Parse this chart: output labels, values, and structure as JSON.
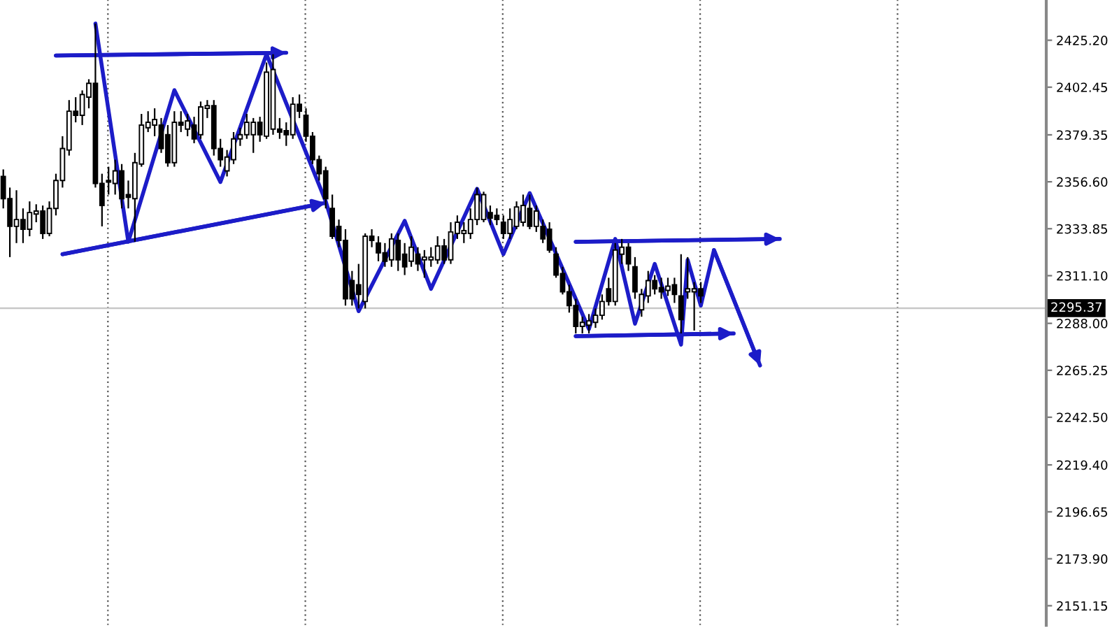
{
  "chart_data": {
    "type": "candlestick",
    "categories": [
      null,
      null,
      null,
      null,
      null,
      null,
      null,
      null,
      null,
      null,
      null,
      null,
      null,
      null,
      null,
      null,
      null,
      null,
      null,
      null,
      null,
      null,
      null,
      null,
      null,
      null,
      null,
      null,
      null,
      null,
      null,
      null,
      null,
      null,
      null,
      null,
      null,
      null,
      null,
      null,
      null,
      null,
      null,
      null,
      null,
      null,
      null,
      null,
      null,
      null,
      null,
      null,
      null,
      null,
      null,
      null,
      null,
      null,
      null,
      null,
      null,
      null,
      null,
      null,
      null,
      null,
      null,
      null,
      null,
      null,
      null,
      null,
      null,
      null,
      null,
      null,
      null,
      null,
      null,
      null,
      null,
      null,
      null,
      null,
      null,
      null,
      null,
      null,
      null,
      null,
      null,
      null,
      null,
      null,
      null,
      null,
      null,
      null,
      null,
      null,
      null,
      null,
      null,
      null,
      null,
      null,
      null,
      null,
      null,
      null,
      null,
      null,
      null,
      null,
      null,
      null,
      null,
      null,
      null,
      null,
      null,
      null,
      null,
      null,
      null,
      null,
      null,
      null,
      null,
      null,
      null,
      null,
      null,
      null,
      null,
      null,
      null,
      null,
      null,
      null,
      null,
      null,
      null,
      null,
      null,
      null,
      null,
      null,
      null,
      null,
      null,
      null,
      null,
      null,
      null,
      null,
      null,
      null,
      null
    ],
    "ohlc": [
      [
        2359.2,
        2362.6,
        2343.7,
        2348.4
      ],
      [
        2348.4,
        2353.8,
        2320.1,
        2335.0
      ],
      [
        2335.0,
        2352.5,
        2326.9,
        2338.3
      ],
      [
        2338.3,
        2343.7,
        2326.9,
        2333.6
      ],
      [
        2333.6,
        2347.1,
        2330.2,
        2341.7
      ],
      [
        2341.0,
        2345.7,
        2337.0,
        2342.4
      ],
      [
        2342.4,
        2345.1,
        2328.9,
        2331.6
      ],
      [
        2331.6,
        2347.1,
        2330.2,
        2343.7
      ],
      [
        2343.7,
        2360.5,
        2340.3,
        2357.2
      ],
      [
        2357.2,
        2378.7,
        2353.8,
        2372.7
      ],
      [
        2372.0,
        2396.2,
        2369.3,
        2390.8
      ],
      [
        2390.8,
        2397.6,
        2385.4,
        2388.8
      ],
      [
        2388.8,
        2400.9,
        2384.1,
        2398.9
      ],
      [
        2397.6,
        2406.3,
        2392.2,
        2404.3
      ],
      [
        2404.3,
        2433.3,
        2353.8,
        2355.8
      ],
      [
        2355.8,
        2360.5,
        2335.0,
        2345.1
      ],
      [
        2357.2,
        2363.9,
        2350.4,
        2356.5
      ],
      [
        2355.8,
        2367.3,
        2350.4,
        2361.9
      ],
      [
        2361.9,
        2365.2,
        2343.7,
        2348.4
      ],
      [
        2350.4,
        2357.2,
        2343.7,
        2349.1
      ],
      [
        2348.4,
        2370.6,
        2327.5,
        2365.9
      ],
      [
        2365.2,
        2389.5,
        2363.9,
        2384.1
      ],
      [
        2382.8,
        2390.8,
        2380.7,
        2385.4
      ],
      [
        2384.1,
        2392.2,
        2378.7,
        2386.8
      ],
      [
        2384.1,
        2387.5,
        2370.6,
        2372.7
      ],
      [
        2379.4,
        2384.1,
        2363.9,
        2365.9
      ],
      [
        2365.9,
        2390.8,
        2363.9,
        2385.4
      ],
      [
        2385.4,
        2390.8,
        2380.7,
        2384.1
      ],
      [
        2382.1,
        2389.5,
        2378.7,
        2386.1
      ],
      [
        2384.1,
        2388.1,
        2375.3,
        2377.4
      ],
      [
        2379.4,
        2395.5,
        2377.4,
        2392.9
      ],
      [
        2392.2,
        2396.2,
        2387.5,
        2393.5
      ],
      [
        2393.5,
        2396.2,
        2369.3,
        2372.7
      ],
      [
        2372.7,
        2377.4,
        2363.9,
        2367.3
      ],
      [
        2361.9,
        2372.0,
        2359.2,
        2368.6
      ],
      [
        2367.3,
        2380.7,
        2365.2,
        2377.4
      ],
      [
        2377.4,
        2382.8,
        2374.0,
        2379.4
      ],
      [
        2379.4,
        2389.5,
        2377.4,
        2385.4
      ],
      [
        2379.4,
        2387.5,
        2370.6,
        2385.4
      ],
      [
        2385.4,
        2388.1,
        2376.0,
        2379.4
      ],
      [
        2378.7,
        2414.4,
        2377.4,
        2409.7
      ],
      [
        2382.1,
        2418.4,
        2379.4,
        2411.0
      ],
      [
        2382.1,
        2387.5,
        2377.4,
        2380.7
      ],
      [
        2381.4,
        2385.4,
        2374.0,
        2379.4
      ],
      [
        2379.4,
        2397.6,
        2377.4,
        2394.2
      ],
      [
        2394.2,
        2398.9,
        2387.5,
        2390.8
      ],
      [
        2388.8,
        2392.2,
        2376.0,
        2378.7
      ],
      [
        2378.7,
        2380.7,
        2365.2,
        2367.3
      ],
      [
        2367.3,
        2369.3,
        2357.2,
        2360.5
      ],
      [
        2361.9,
        2363.9,
        2343.7,
        2348.4
      ],
      [
        2343.7,
        2350.4,
        2328.9,
        2330.2
      ],
      [
        2335.0,
        2338.3,
        2324.9,
        2328.2
      ],
      [
        2328.2,
        2333.6,
        2296.6,
        2299.9
      ],
      [
        2308.7,
        2313.4,
        2296.6,
        2299.9
      ],
      [
        2306.7,
        2316.8,
        2295.2,
        2302.0
      ],
      [
        2298.6,
        2331.6,
        2295.2,
        2330.2
      ],
      [
        2330.2,
        2333.6,
        2324.9,
        2328.2
      ],
      [
        2326.9,
        2330.2,
        2318.1,
        2322.2
      ],
      [
        2322.2,
        2326.9,
        2315.4,
        2318.1
      ],
      [
        2318.8,
        2331.6,
        2315.4,
        2328.9
      ],
      [
        2328.2,
        2331.6,
        2313.4,
        2318.8
      ],
      [
        2321.5,
        2326.9,
        2311.4,
        2315.4
      ],
      [
        2318.1,
        2330.2,
        2315.4,
        2324.9
      ],
      [
        2321.5,
        2324.9,
        2313.4,
        2316.8
      ],
      [
        2318.8,
        2323.5,
        2310.1,
        2320.1
      ],
      [
        2318.8,
        2324.9,
        2315.4,
        2320.1
      ],
      [
        2318.8,
        2330.2,
        2316.8,
        2325.5
      ],
      [
        2325.5,
        2328.9,
        2316.8,
        2318.8
      ],
      [
        2318.8,
        2337.0,
        2316.8,
        2332.3
      ],
      [
        2331.6,
        2340.3,
        2328.9,
        2337.0
      ],
      [
        2331.6,
        2337.0,
        2326.9,
        2332.9
      ],
      [
        2331.6,
        2343.7,
        2328.9,
        2338.3
      ],
      [
        2338.3,
        2353.8,
        2335.6,
        2350.4
      ],
      [
        2338.3,
        2351.8,
        2337.0,
        2350.4
      ],
      [
        2341.7,
        2345.1,
        2335.6,
        2339.0
      ],
      [
        2340.3,
        2343.7,
        2335.6,
        2338.3
      ],
      [
        2337.0,
        2340.3,
        2328.9,
        2331.6
      ],
      [
        2331.6,
        2343.7,
        2328.9,
        2338.3
      ],
      [
        2335.0,
        2347.1,
        2333.6,
        2344.4
      ],
      [
        2337.0,
        2350.4,
        2335.0,
        2345.1
      ],
      [
        2343.7,
        2350.4,
        2333.6,
        2335.0
      ],
      [
        2335.0,
        2345.1,
        2332.3,
        2342.4
      ],
      [
        2335.0,
        2338.3,
        2326.9,
        2328.9
      ],
      [
        2333.6,
        2337.0,
        2322.2,
        2323.5
      ],
      [
        2321.5,
        2324.9,
        2310.1,
        2311.4
      ],
      [
        2312.1,
        2315.4,
        2302.0,
        2303.3
      ],
      [
        2303.3,
        2306.7,
        2293.2,
        2296.6
      ],
      [
        2296.6,
        2299.9,
        2283.1,
        2286.5
      ],
      [
        2286.5,
        2291.2,
        2283.1,
        2288.5
      ],
      [
        2287.1,
        2292.5,
        2283.1,
        2289.2
      ],
      [
        2288.5,
        2295.2,
        2285.8,
        2291.9
      ],
      [
        2291.9,
        2302.0,
        2289.8,
        2298.6
      ],
      [
        2304.7,
        2310.1,
        2296.6,
        2298.6
      ],
      [
        2298.6,
        2326.9,
        2296.6,
        2323.5
      ],
      [
        2321.5,
        2328.9,
        2316.8,
        2324.9
      ],
      [
        2324.9,
        2326.9,
        2313.4,
        2316.8
      ],
      [
        2315.4,
        2320.1,
        2299.9,
        2303.3
      ],
      [
        2294.6,
        2304.7,
        2291.2,
        2302.0
      ],
      [
        2301.3,
        2313.4,
        2297.9,
        2308.7
      ],
      [
        2308.7,
        2311.4,
        2302.0,
        2304.7
      ],
      [
        2305.3,
        2310.1,
        2299.9,
        2303.3
      ],
      [
        2304.0,
        2310.1,
        2301.3,
        2306.0
      ],
      [
        2306.7,
        2310.1,
        2297.9,
        2302.0
      ],
      [
        2301.3,
        2321.5,
        2283.1,
        2289.8
      ],
      [
        2303.3,
        2320.1,
        2299.9,
        2304.7
      ],
      [
        2303.3,
        2308.0,
        2284.5,
        2304.7
      ],
      [
        2304.7,
        2308.0,
        2297.9,
        2301.3
      ],
      null,
      null,
      null,
      null,
      null,
      null,
      null,
      null,
      null,
      null,
      null,
      null,
      null,
      null,
      null,
      null,
      null,
      null,
      null,
      null,
      null,
      null,
      null,
      null,
      null,
      null,
      null,
      null,
      null,
      null,
      null,
      null,
      null,
      null,
      null,
      null,
      null,
      null,
      null,
      null,
      null,
      null,
      null,
      null,
      null,
      null,
      null,
      null,
      null,
      null,
      null,
      null
    ],
    "series": [
      {
        "type": "line",
        "color": "#1c1cc8",
        "values": [
          null,
          null,
          null,
          null,
          null,
          null,
          null,
          null,
          null,
          null,
          null,
          null,
          null,
          null,
          2433.3,
          null,
          null,
          null,
          null,
          2327.5,
          null,
          null,
          null,
          null,
          null,
          null,
          2401.0,
          null,
          null,
          null,
          null,
          null,
          null,
          2356.5,
          null,
          null,
          null,
          null,
          null,
          null,
          2418.4,
          null,
          null,
          null,
          null,
          null,
          null,
          null,
          null,
          2347.1,
          null,
          null,
          null,
          null,
          2293.9,
          null,
          null,
          null,
          null,
          null,
          null,
          2337.7,
          null,
          null,
          null,
          2304.7,
          null,
          null,
          null,
          null,
          null,
          null,
          2353.2,
          null,
          null,
          null,
          2321.5,
          null,
          null,
          null,
          2351.1,
          null,
          null,
          null,
          null,
          null,
          null,
          null,
          null,
          2285.2,
          null,
          null,
          null,
          2328.9,
          null,
          null,
          2287.8,
          null,
          null,
          2316.8,
          null,
          null,
          null,
          2277.7,
          2318.8,
          null,
          2296.6,
          null,
          2323.5,
          null,
          null,
          null,
          null,
          null,
          null,
          2267.6,
          null,
          null,
          null,
          null,
          null,
          null,
          null,
          null,
          null,
          null,
          null,
          null,
          null,
          null,
          null,
          null,
          null,
          null,
          null,
          null,
          null,
          null,
          null,
          null,
          null,
          null,
          null,
          null,
          null,
          null,
          null,
          null,
          null,
          null,
          null,
          null,
          null,
          null,
          null,
          null,
          null,
          null,
          null
        ]
      },
      {
        "type": "line",
        "color": "#1c1cc8",
        "values": [
          null,
          null,
          null,
          null,
          null,
          null,
          null,
          null,
          2417.8,
          null,
          null,
          null,
          null,
          null,
          null,
          null,
          null,
          null,
          null,
          null,
          null,
          null,
          null,
          null,
          null,
          null,
          null,
          null,
          null,
          null,
          null,
          null,
          null,
          null,
          null,
          null,
          null,
          null,
          null,
          null,
          null,
          null,
          null,
          2419.1,
          null,
          null,
          null,
          null,
          null,
          null,
          null,
          null,
          null,
          null,
          null,
          null,
          null,
          null,
          null,
          null,
          null,
          null,
          null,
          null,
          null,
          null,
          null,
          null,
          null,
          null,
          null,
          null,
          null,
          null,
          null,
          null,
          null,
          null,
          null,
          null,
          null,
          null,
          null,
          null,
          null,
          null,
          null,
          null,
          null,
          null,
          null,
          null,
          null,
          null,
          null,
          null,
          null,
          null,
          null,
          null,
          null,
          null,
          null,
          null,
          null,
          null,
          null,
          null,
          null,
          null,
          null,
          null,
          null,
          null,
          null,
          null,
          null,
          null,
          null,
          null,
          null,
          null,
          null,
          null,
          null,
          null,
          null,
          null,
          null,
          null,
          null,
          null,
          null,
          null,
          null,
          null,
          null,
          null,
          null,
          null,
          null,
          null,
          null,
          null,
          null,
          null,
          null,
          null,
          null,
          null,
          null,
          null,
          null,
          null,
          null,
          null,
          null,
          null,
          null
        ]
      },
      {
        "type": "line",
        "color": "#1c1cc8",
        "values": [
          null,
          null,
          null,
          null,
          null,
          null,
          null,
          null,
          null,
          2321.5,
          null,
          null,
          null,
          null,
          null,
          null,
          null,
          null,
          null,
          null,
          null,
          null,
          null,
          null,
          null,
          null,
          null,
          null,
          null,
          null,
          null,
          null,
          null,
          null,
          null,
          null,
          null,
          null,
          null,
          null,
          null,
          null,
          null,
          null,
          null,
          null,
          null,
          null,
          null,
          2346.4,
          null,
          null,
          null,
          null,
          null,
          null,
          null,
          null,
          null,
          null,
          null,
          null,
          null,
          null,
          null,
          null,
          null,
          null,
          null,
          null,
          null,
          null,
          null,
          null,
          null,
          null,
          null,
          null,
          null,
          null,
          null,
          null,
          null,
          null,
          null,
          null,
          null,
          null,
          null,
          null,
          null,
          null,
          null,
          null,
          null,
          null,
          null,
          null,
          null,
          null,
          null,
          null,
          null,
          null,
          null,
          null,
          null,
          null,
          null,
          null,
          null,
          null,
          null,
          null,
          null,
          null,
          null,
          null,
          null,
          null,
          null,
          null,
          null,
          null,
          null,
          null,
          null,
          null,
          null,
          null,
          null,
          null,
          null,
          null,
          null,
          null,
          null,
          null,
          null,
          null,
          null,
          null,
          null,
          null,
          null,
          null,
          null,
          null,
          null,
          null,
          null,
          null,
          null,
          null,
          null,
          null,
          null,
          null,
          null
        ]
      },
      {
        "type": "line",
        "color": "#1c1cc8",
        "values": [
          null,
          null,
          null,
          null,
          null,
          null,
          null,
          null,
          null,
          null,
          null,
          null,
          null,
          null,
          null,
          null,
          null,
          null,
          null,
          null,
          null,
          null,
          null,
          null,
          null,
          null,
          null,
          null,
          null,
          null,
          null,
          null,
          null,
          null,
          null,
          null,
          null,
          null,
          null,
          null,
          null,
          null,
          null,
          null,
          null,
          null,
          null,
          null,
          null,
          null,
          null,
          null,
          null,
          null,
          null,
          null,
          null,
          null,
          null,
          null,
          null,
          null,
          null,
          null,
          null,
          null,
          null,
          null,
          null,
          null,
          null,
          null,
          null,
          null,
          null,
          null,
          null,
          null,
          null,
          null,
          null,
          null,
          null,
          null,
          null,
          null,
          null,
          2327.5,
          null,
          null,
          null,
          null,
          null,
          null,
          null,
          null,
          null,
          null,
          null,
          null,
          null,
          null,
          null,
          null,
          null,
          null,
          null,
          null,
          null,
          null,
          null,
          null,
          null,
          null,
          null,
          null,
          null,
          null,
          2328.9,
          null,
          null,
          null,
          null,
          null,
          null,
          null,
          null,
          null,
          null,
          null,
          null,
          null,
          null,
          null,
          null,
          null,
          null,
          null,
          null,
          null,
          null,
          null,
          null,
          null,
          null,
          null,
          null,
          null,
          null,
          null,
          null,
          null,
          null,
          null,
          null,
          null,
          null,
          null,
          null
        ]
      },
      {
        "type": "line",
        "color": "#1c1cc8",
        "values": [
          null,
          null,
          null,
          null,
          null,
          null,
          null,
          null,
          null,
          null,
          null,
          null,
          null,
          null,
          null,
          null,
          null,
          null,
          null,
          null,
          null,
          null,
          null,
          null,
          null,
          null,
          null,
          null,
          null,
          null,
          null,
          null,
          null,
          null,
          null,
          null,
          null,
          null,
          null,
          null,
          null,
          null,
          null,
          null,
          null,
          null,
          null,
          null,
          null,
          null,
          null,
          null,
          null,
          null,
          null,
          null,
          null,
          null,
          null,
          null,
          null,
          null,
          null,
          null,
          null,
          null,
          null,
          null,
          null,
          null,
          null,
          null,
          null,
          null,
          null,
          null,
          null,
          null,
          null,
          null,
          null,
          null,
          null,
          null,
          null,
          null,
          null,
          2281.8,
          null,
          null,
          null,
          null,
          null,
          null,
          null,
          null,
          null,
          null,
          null,
          null,
          null,
          null,
          null,
          null,
          null,
          null,
          null,
          null,
          null,
          null,
          null,
          2283.1,
          null,
          null,
          null,
          null,
          null,
          null,
          null,
          null,
          null,
          null,
          null,
          null,
          null,
          null,
          null,
          null,
          null,
          null,
          null,
          null,
          null,
          null,
          null,
          null,
          null,
          null,
          null,
          null,
          null,
          null,
          null,
          null,
          null,
          null,
          null,
          null,
          null,
          null,
          null,
          null,
          null,
          null,
          null,
          null,
          null,
          null,
          null
        ]
      }
    ],
    "ylim": [
      2141.7,
      2444.7
    ],
    "yticks": [
      {
        "value": 2151.15,
        "label": "2151.15"
      },
      {
        "value": 2173.9,
        "label": "2173.90"
      },
      {
        "value": 2196.65,
        "label": "2196.65"
      },
      {
        "value": 2219.4,
        "label": "2219.40"
      },
      {
        "value": 2242.5,
        "label": "2242.50"
      },
      {
        "value": 2265.25,
        "label": "2265.25"
      },
      {
        "value": 2288.0,
        "label": "2288.00"
      },
      {
        "value": 2311.1,
        "label": "2311.10"
      },
      {
        "value": 2333.85,
        "label": "2333.85"
      },
      {
        "value": 2356.6,
        "label": "2356.60"
      },
      {
        "value": 2379.35,
        "label": "2379.35"
      },
      {
        "value": 2402.45,
        "label": "2402.45"
      },
      {
        "value": 2425.2,
        "label": "2425.20"
      }
    ],
    "ref_lines": [
      {
        "axis": "y",
        "value": 2295.37,
        "label": "2295.37",
        "color": "#c8c8c8"
      }
    ],
    "tick_labels": "y",
    "grid": false,
    "legend": false,
    "marker": "none",
    "line_style": "solid"
  }
}
